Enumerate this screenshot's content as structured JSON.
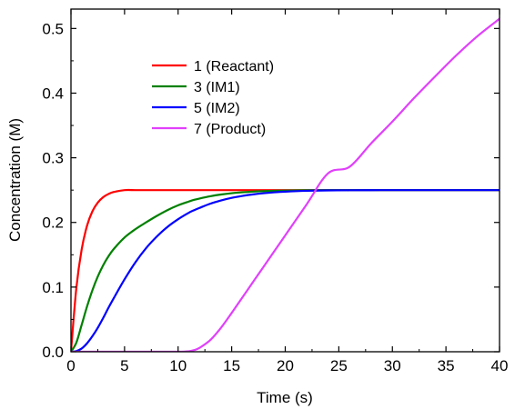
{
  "chart_data": {
    "type": "line",
    "xlabel": "Time (s)",
    "ylabel": "Concentration (M)",
    "xlim": [
      0,
      40
    ],
    "ylim": [
      0,
      0.53
    ],
    "xticks": [
      0,
      5,
      10,
      15,
      20,
      25,
      30,
      35,
      40
    ],
    "yticks": [
      0.0,
      0.1,
      0.2,
      0.3,
      0.4,
      0.5
    ],
    "xtick_labels": [
      "0",
      "5",
      "10",
      "15",
      "20",
      "25",
      "30",
      "35",
      "40"
    ],
    "ytick_labels": [
      "0.0",
      "0.1",
      "0.2",
      "0.3",
      "0.4",
      "0.5"
    ],
    "grid": false,
    "legend_position": "upper-left",
    "x": [
      0,
      0.5,
      1,
      1.5,
      2,
      2.5,
      3,
      3.5,
      4,
      5,
      6,
      7,
      8,
      9,
      10,
      11,
      11.5,
      12,
      13,
      14,
      15,
      16,
      17,
      18,
      19,
      20,
      22,
      24,
      26,
      28,
      30,
      32,
      34,
      36,
      38,
      40
    ],
    "series": [
      {
        "name": "1 (Reactant)",
        "color": "#ff0000",
        "values": [
          0.0,
          0.0984,
          0.1584,
          0.1949,
          0.2172,
          0.2307,
          0.239,
          0.244,
          0.2471,
          0.25,
          0.25,
          0.25,
          0.25,
          0.25,
          0.25,
          0.25,
          0.25,
          0.25,
          0.25,
          0.25,
          0.25,
          0.25,
          0.25,
          0.25,
          0.25,
          0.25,
          0.25,
          0.25,
          0.25,
          0.25,
          0.25,
          0.25,
          0.25,
          0.25,
          0.25,
          0.25
        ]
      },
      {
        "name": "3 (IM1)",
        "color": "#008000",
        "values": [
          0.0,
          0.014,
          0.0417,
          0.07,
          0.0951,
          0.1162,
          0.1336,
          0.1476,
          0.159,
          0.1767,
          0.1894,
          0.2,
          0.21,
          0.219,
          0.2265,
          0.2323,
          0.235,
          0.237,
          0.2405,
          0.2432,
          0.2452,
          0.2466,
          0.2477,
          0.2484,
          0.2489,
          0.2493,
          0.2497,
          0.2499,
          0.25,
          0.25,
          0.25,
          0.25,
          0.25,
          0.25,
          0.25,
          0.25
        ]
      },
      {
        "name": "5 (IM2)",
        "color": "#0000ff",
        "values": [
          0.0,
          0.001,
          0.005,
          0.013,
          0.024,
          0.037,
          0.052,
          0.068,
          0.083,
          0.112,
          0.138,
          0.16,
          0.178,
          0.193,
          0.205,
          0.215,
          0.219,
          0.2225,
          0.229,
          0.234,
          0.238,
          0.241,
          0.2434,
          0.2452,
          0.2466,
          0.2476,
          0.2489,
          0.2495,
          0.2498,
          0.2499,
          0.25,
          0.25,
          0.25,
          0.25,
          0.25,
          0.25
        ]
      },
      {
        "name": "7 (Product)",
        "color": "#e040fb",
        "values": [
          0.0,
          0.0,
          0.0,
          0.0,
          0.0,
          0.0,
          0.0,
          0.0,
          0.0,
          0.0,
          0.0,
          0.0,
          0.0,
          0.0,
          0.0,
          0.0008,
          0.0025,
          0.006,
          0.018,
          0.037,
          0.06,
          0.084,
          0.108,
          0.132,
          0.156,
          0.18,
          0.228,
          0.276,
          0.286,
          0.322,
          0.356,
          0.392,
          0.426,
          0.459,
          0.489,
          0.515
        ]
      }
    ]
  }
}
